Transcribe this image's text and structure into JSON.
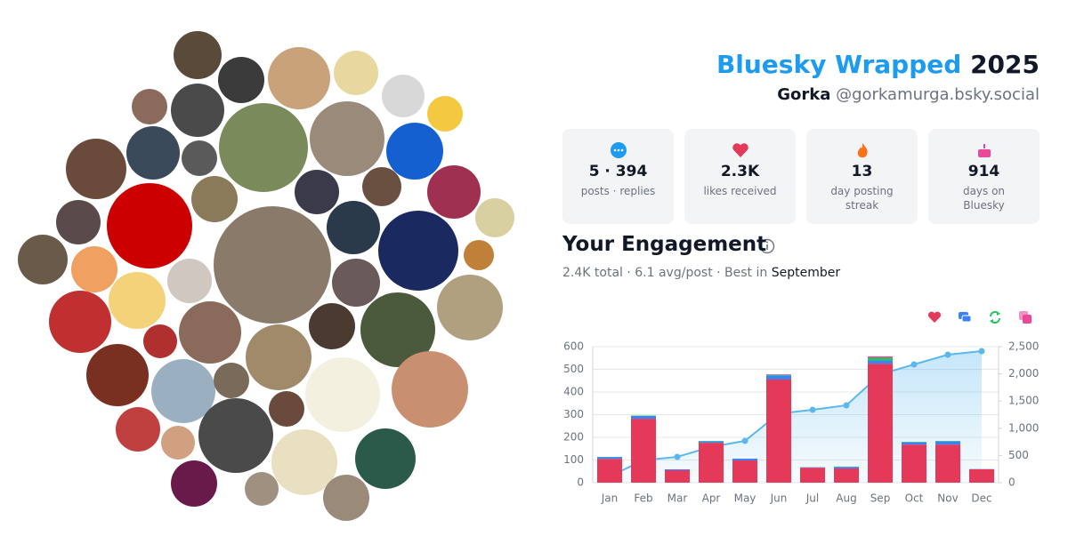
{
  "header": {
    "title": "Bluesky Wrapped",
    "year": "2025",
    "name": "Gorka",
    "handle": "@gorkamurga.bsky.social"
  },
  "stats": [
    {
      "value": "5 · 394",
      "label": "posts · replies"
    },
    {
      "value": "2.3K",
      "label": "likes received"
    },
    {
      "value": "13",
      "label": "day posting streak"
    },
    {
      "value": "914",
      "label": "days on Bluesky"
    }
  ],
  "engagement": {
    "title": "Your Engagement",
    "summary": "2.4K total · 6.1 avg/post · Best in",
    "best": "September"
  },
  "chart_data": {
    "type": "bar",
    "categories": [
      "Jan",
      "Feb",
      "Mar",
      "Apr",
      "May",
      "Jun",
      "Jul",
      "Aug",
      "Sep",
      "Oct",
      "Nov",
      "Dec"
    ],
    "stacked": true,
    "series": [
      {
        "color": "#e5395a",
        "values": [
          105,
          282,
          55,
          176,
          98,
          455,
          66,
          63,
          525,
          168,
          168,
          59
        ]
      },
      {
        "color": "#3b82f6",
        "values": [
          8,
          12,
          4,
          6,
          8,
          18,
          2,
          7,
          14,
          10,
          14,
          1
        ]
      },
      {
        "color": "#22c55e",
        "values": [
          1,
          2,
          0,
          2,
          0,
          3,
          0,
          1,
          12,
          2,
          2,
          0
        ]
      },
      {
        "color": "#ec4899",
        "values": [
          0,
          0,
          0,
          0,
          0,
          2,
          0,
          0,
          6,
          0,
          0,
          0
        ]
      },
      {
        "type": "area",
        "axis": "y2",
        "color": "#5bb8ec",
        "values": [
          114,
          412,
          474,
          658,
          768,
          1270,
          1340,
          1422,
          1990,
          2173,
          2353,
          2418
        ]
      }
    ],
    "ylim": [
      0,
      600
    ],
    "yticks": [
      0,
      100,
      200,
      300,
      400,
      500,
      600
    ],
    "y2lim": [
      0,
      2500
    ],
    "y2ticks": [
      0,
      500,
      {
        "value": 1000,
        "label": "1,000"
      },
      {
        "value": 1500,
        "label": "1,500"
      },
      {
        "value": 2000,
        "label": "2,000"
      },
      {
        "value": 2500,
        "label": "2,500"
      }
    ],
    "grid": true
  }
}
